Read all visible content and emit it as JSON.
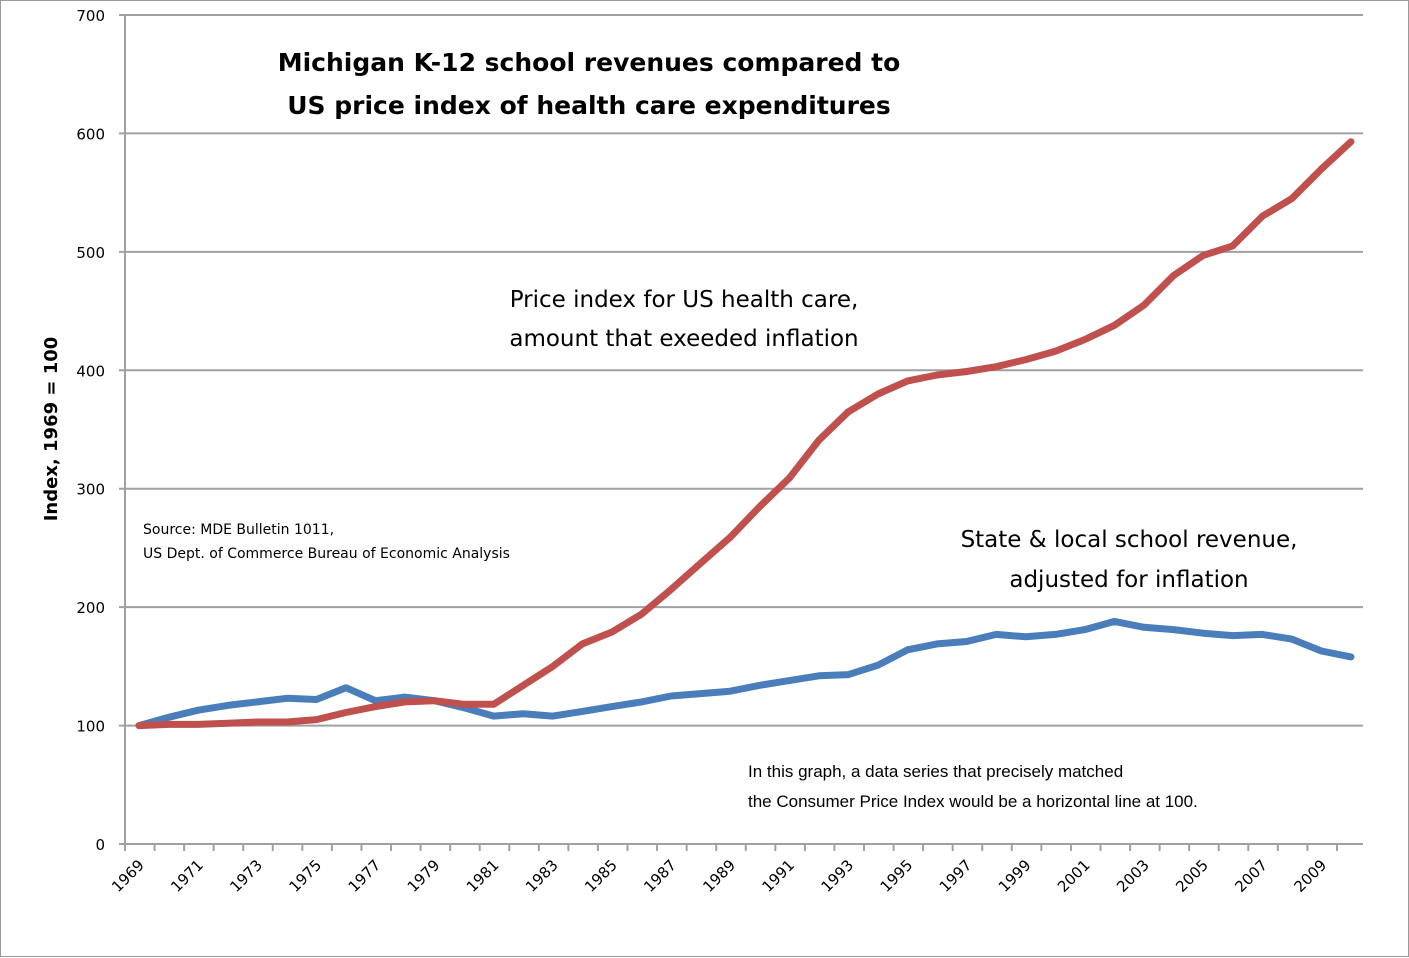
{
  "chart_data": {
    "type": "line",
    "title": "Michigan K-12 school revenues compared to US price index of health care expenditures",
    "title_lines": [
      "Michigan K-12 school revenues compared to",
      "US price index of health care expenditures"
    ],
    "xlabel": "",
    "ylabel": "Index, 1969 = 100",
    "ylim": [
      0,
      700
    ],
    "yticks": [
      0,
      100,
      200,
      300,
      400,
      500,
      600,
      700
    ],
    "grid": true,
    "legend": "none (series labeled by annotations)",
    "x": [
      1969,
      1970,
      1971,
      1972,
      1973,
      1974,
      1975,
      1976,
      1977,
      1978,
      1979,
      1980,
      1981,
      1982,
      1983,
      1984,
      1985,
      1986,
      1987,
      1988,
      1989,
      1990,
      1991,
      1992,
      1993,
      1994,
      1995,
      1996,
      1997,
      1998,
      1999,
      2000,
      2001,
      2002,
      2003,
      2004,
      2005,
      2006,
      2007,
      2008,
      2009,
      2010
    ],
    "xtick_labels": [
      "1969",
      "1971",
      "1973",
      "1975",
      "1977",
      "1979",
      "1981",
      "1983",
      "1985",
      "1987",
      "1989",
      "1991",
      "1993",
      "1995",
      "1997",
      "1999",
      "2001",
      "2003",
      "2005",
      "2007",
      "2009"
    ],
    "series": [
      {
        "name": "Price index for US health care, amount that exceeded inflation",
        "color": "#c0504d",
        "values": [
          100,
          101,
          101,
          102,
          103,
          103,
          105,
          111,
          116,
          120,
          121,
          118,
          118,
          134,
          150,
          169,
          179,
          194,
          215,
          237,
          259,
          285,
          309,
          341,
          365,
          380,
          391,
          396,
          399,
          403,
          409,
          416,
          426,
          438,
          455,
          480,
          497,
          505,
          530,
          545,
          570,
          593
        ]
      },
      {
        "name": "State & local school revenue, adjusted for inflation",
        "color": "#4a7ebb",
        "values": [
          100,
          107,
          113,
          117,
          120,
          123,
          122,
          132,
          121,
          124,
          121,
          115,
          108,
          110,
          108,
          112,
          116,
          120,
          125,
          127,
          129,
          134,
          138,
          142,
          143,
          151,
          164,
          169,
          171,
          177,
          175,
          177,
          181,
          188,
          183,
          181,
          178,
          176,
          177,
          173,
          163,
          158
        ]
      }
    ],
    "annotations": {
      "health_label": [
        "Price index for US health care,",
        "amount that exeeded inflation"
      ],
      "school_label": [
        "State & local school revenue,",
        "adjusted for inflation"
      ],
      "source": [
        "Source: MDE Bulletin 1011,",
        "US Dept. of Commerce Bureau of Economic Analysis"
      ],
      "note": [
        "In this graph, a data series that precisely matched",
        "the Consumer Price Index would be a horizontal line at 100."
      ]
    }
  }
}
